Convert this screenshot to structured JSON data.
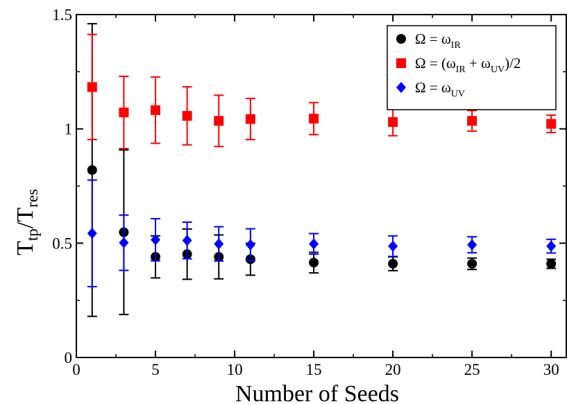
{
  "chart_data": {
    "type": "scatter",
    "xlabel": "Number of Seeds",
    "ylabel": {
      "main": "T",
      "sub1": "tp",
      "sep": "/T",
      "sub2": "res"
    },
    "xlim": [
      0,
      31
    ],
    "ylim": [
      0,
      1.5
    ],
    "x_major_ticks": [
      0,
      5,
      10,
      15,
      20,
      25,
      30
    ],
    "y_major_ticks": [
      0,
      0.5,
      1,
      1.5
    ],
    "x_tick_labels": [
      "0",
      "5",
      "10",
      "15",
      "20",
      "25",
      "30"
    ],
    "y_tick_labels": [
      "0",
      "0.5",
      "1",
      "1.5"
    ],
    "legend_position": "top-right",
    "series": [
      {
        "legend": {
          "pre": "Ω = ω",
          "sub1": "IR",
          "mid": "",
          "sub2": "",
          "post": ""
        },
        "marker": "circle",
        "color": "#000000",
        "points": [
          {
            "x": 1,
            "y": 0.82,
            "err": 0.64
          },
          {
            "x": 3,
            "y": 0.548,
            "err": 0.36
          },
          {
            "x": 5,
            "y": 0.44,
            "err": 0.092
          },
          {
            "x": 7,
            "y": 0.452,
            "err": 0.11
          },
          {
            "x": 9,
            "y": 0.44,
            "err": 0.096
          },
          {
            "x": 11,
            "y": 0.43,
            "err": 0.07
          },
          {
            "x": 15,
            "y": 0.415,
            "err": 0.045
          },
          {
            "x": 20,
            "y": 0.41,
            "err": 0.03
          },
          {
            "x": 25,
            "y": 0.41,
            "err": 0.025
          },
          {
            "x": 30,
            "y": 0.41,
            "err": 0.02
          }
        ]
      },
      {
        "legend": {
          "pre": "Ω = (ω",
          "sub1": "IR",
          "mid": " + ω",
          "sub2": "UV",
          "post": ")/2"
        },
        "marker": "square",
        "color": "#ff0000",
        "points": [
          {
            "x": 1,
            "y": 1.183,
            "err": 0.23
          },
          {
            "x": 3,
            "y": 1.072,
            "err": 0.158
          },
          {
            "x": 5,
            "y": 1.082,
            "err": 0.145
          },
          {
            "x": 7,
            "y": 1.057,
            "err": 0.127
          },
          {
            "x": 9,
            "y": 1.035,
            "err": 0.112
          },
          {
            "x": 11,
            "y": 1.043,
            "err": 0.09
          },
          {
            "x": 15,
            "y": 1.045,
            "err": 0.07
          },
          {
            "x": 20,
            "y": 1.03,
            "err": 0.06
          },
          {
            "x": 25,
            "y": 1.035,
            "err": 0.045
          },
          {
            "x": 30,
            "y": 1.022,
            "err": 0.038
          }
        ]
      },
      {
        "legend": {
          "pre": "Ω = ω",
          "sub1": "UV",
          "mid": "",
          "sub2": "",
          "post": ""
        },
        "marker": "diamond",
        "color": "#0000ff",
        "points": [
          {
            "x": 1,
            "y": 0.543,
            "err": 0.233
          },
          {
            "x": 3,
            "y": 0.502,
            "err": 0.121
          },
          {
            "x": 5,
            "y": 0.515,
            "err": 0.092
          },
          {
            "x": 7,
            "y": 0.512,
            "err": 0.08
          },
          {
            "x": 9,
            "y": 0.497,
            "err": 0.075
          },
          {
            "x": 11,
            "y": 0.493,
            "err": 0.07
          },
          {
            "x": 15,
            "y": 0.497,
            "err": 0.045
          },
          {
            "x": 20,
            "y": 0.487,
            "err": 0.045
          },
          {
            "x": 25,
            "y": 0.493,
            "err": 0.035
          },
          {
            "x": 30,
            "y": 0.487,
            "err": 0.03
          }
        ]
      }
    ]
  }
}
